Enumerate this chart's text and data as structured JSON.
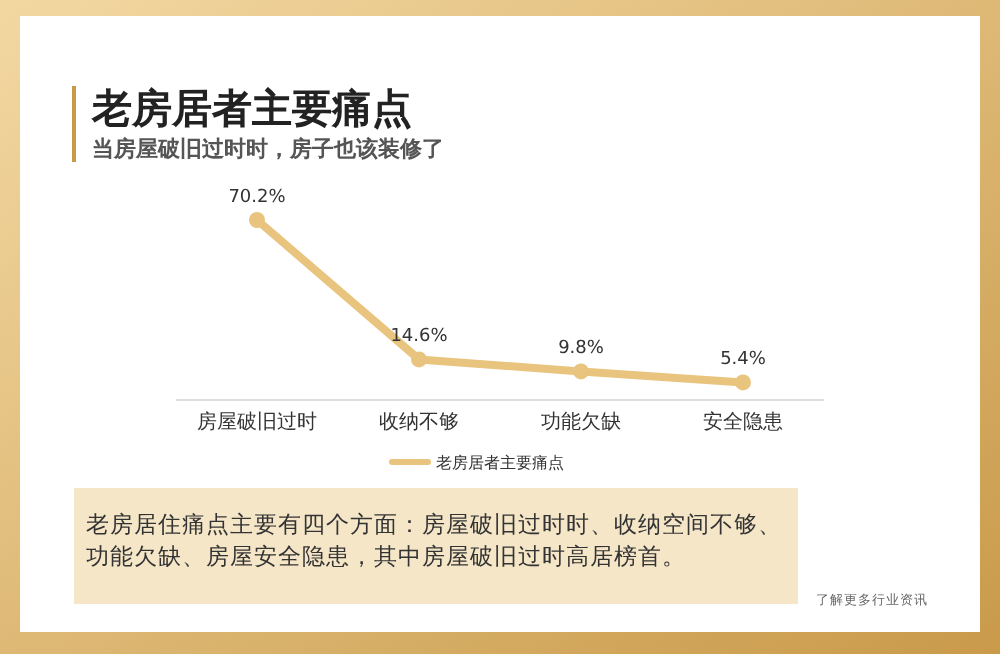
{
  "chart_data": {
    "type": "line",
    "title": "老房居者主要痛点",
    "subtitle": "当房屋破旧过时时，房子也该装修了",
    "categories": [
      "房屋破旧过时",
      "收纳不够",
      "功能欠缺",
      "安全隐患"
    ],
    "series": [
      {
        "name": "老房居者主要痛点",
        "color": "#e9c47e",
        "values": [
          70.2,
          14.6,
          9.8,
          5.4
        ],
        "value_labels": [
          "70.2%",
          "14.6%",
          "9.8%",
          "5.4%"
        ]
      }
    ],
    "marker": "circle",
    "line_style": "solid",
    "legend": "bottom",
    "annotations": [
      "老房居住痛点主要有四个方面：房屋破旧过时时、收纳空间不够、功能欠缺、房屋安全隐患，其中房屋破旧过时高居榜首。",
      "了解更多行业资讯"
    ]
  }
}
